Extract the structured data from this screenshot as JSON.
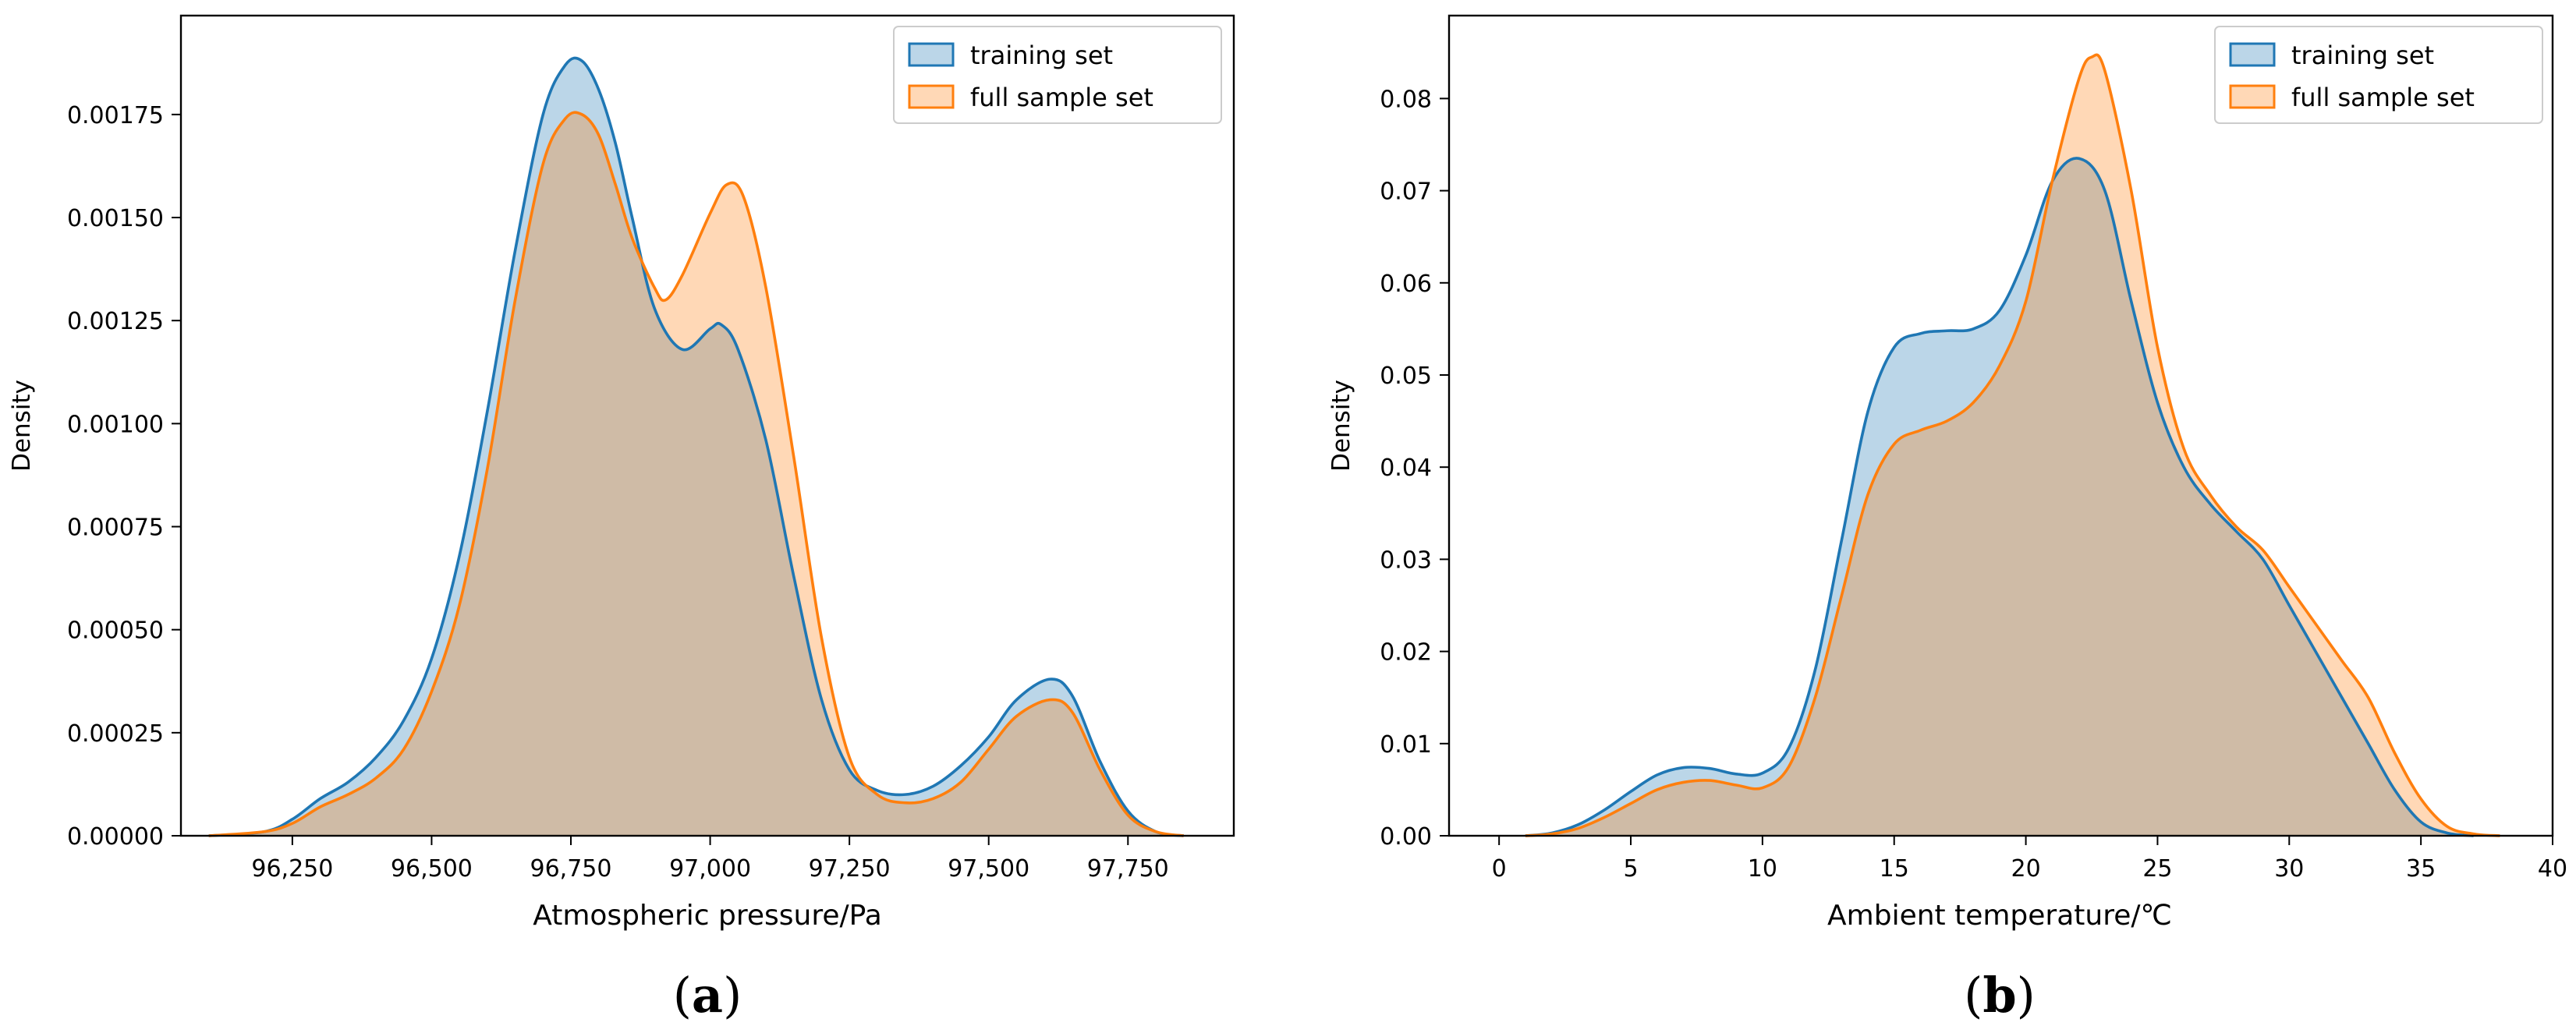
{
  "colors": {
    "training_fill": "#1f77b4",
    "training_line": "#1f77b4",
    "full_fill": "#ff7f0e",
    "full_line": "#ff7f0e"
  },
  "chart_data": [
    {
      "type": "area",
      "panel": "a",
      "panel_open": "(",
      "panel_close": ")",
      "xlabel": "Atmospheric pressure/Pa",
      "ylabel": "Density",
      "xlim": [
        96050,
        97940
      ],
      "ylim": [
        0,
        0.00199
      ],
      "xticks": [
        96250,
        96500,
        96750,
        97000,
        97250,
        97500,
        97750
      ],
      "xtick_labels": [
        "96,250",
        "96,500",
        "96,750",
        "97,000",
        "97,250",
        "97,500",
        "97,750"
      ],
      "yticks": [
        0,
        0.00025,
        0.0005,
        0.00075,
        0.001,
        0.00125,
        0.0015,
        0.00175
      ],
      "ytick_labels": [
        "0.00000",
        "0.00025",
        "0.00050",
        "0.00075",
        "0.00100",
        "0.00125",
        "0.00150",
        "0.00175"
      ],
      "legend": {
        "position": "top-right",
        "entries": [
          "training set",
          "full sample set"
        ]
      },
      "series": [
        {
          "name": "training set",
          "x": [
            96100,
            96200,
            96250,
            96300,
            96350,
            96400,
            96450,
            96500,
            96550,
            96600,
            96650,
            96700,
            96740,
            96770,
            96800,
            96830,
            96860,
            96900,
            96950,
            97000,
            97020,
            97050,
            97100,
            97150,
            97200,
            97250,
            97300,
            97350,
            97400,
            97450,
            97500,
            97550,
            97610,
            97650,
            97700,
            97750,
            97800,
            97850
          ],
          "y": [
            0.0,
            1e-05,
            4e-05,
            9e-05,
            0.00013,
            0.00019,
            0.00028,
            0.00043,
            0.00068,
            0.00103,
            0.00142,
            0.00175,
            0.00187,
            0.00188,
            0.00181,
            0.00168,
            0.0015,
            0.00128,
            0.00118,
            0.00123,
            0.00124,
            0.00118,
            0.00096,
            0.00063,
            0.00033,
            0.00016,
            0.00011,
            0.0001,
            0.00012,
            0.00017,
            0.00024,
            0.00033,
            0.00038,
            0.00034,
            0.00018,
            6e-05,
            1e-05,
            0.0
          ]
        },
        {
          "name": "full sample set",
          "x": [
            96100,
            96200,
            96250,
            96300,
            96350,
            96400,
            96450,
            96500,
            96550,
            96600,
            96650,
            96700,
            96740,
            96770,
            96800,
            96830,
            96860,
            96900,
            96920,
            96950,
            97000,
            97030,
            97060,
            97100,
            97150,
            97200,
            97250,
            97300,
            97350,
            97400,
            97450,
            97500,
            97550,
            97610,
            97650,
            97700,
            97750,
            97800,
            97850
          ],
          "y": [
            0.0,
            1e-05,
            3e-05,
            7e-05,
            0.0001,
            0.00014,
            0.00021,
            0.00035,
            0.00056,
            0.00089,
            0.0013,
            0.00163,
            0.00174,
            0.00175,
            0.0017,
            0.00158,
            0.00145,
            0.00133,
            0.0013,
            0.00136,
            0.00151,
            0.00158,
            0.00155,
            0.00133,
            0.00092,
            0.00048,
            0.00019,
            0.0001,
            8e-05,
            9e-05,
            0.00013,
            0.00021,
            0.00029,
            0.00033,
            0.0003,
            0.00016,
            5e-05,
            1e-05,
            0.0
          ]
        }
      ]
    },
    {
      "type": "area",
      "panel": "b",
      "panel_open": "(",
      "panel_close": ")",
      "xlabel": "Ambient temperature/℃",
      "ylabel": "Density",
      "xlim": [
        -1.9,
        40.0
      ],
      "ylim": [
        0,
        0.089
      ],
      "xticks": [
        0,
        5,
        10,
        15,
        20,
        25,
        30,
        35,
        40
      ],
      "xtick_labels": [
        "0",
        "5",
        "10",
        "15",
        "20",
        "25",
        "30",
        "35",
        "40"
      ],
      "yticks": [
        0,
        0.01,
        0.02,
        0.03,
        0.04,
        0.05,
        0.06,
        0.07,
        0.08
      ],
      "ytick_labels": [
        "0.00",
        "0.01",
        "0.02",
        "0.03",
        "0.04",
        "0.05",
        "0.06",
        "0.07",
        "0.08"
      ],
      "legend": {
        "position": "top-right",
        "entries": [
          "training set",
          "full sample set"
        ]
      },
      "series": [
        {
          "name": "training set",
          "x": [
            1,
            2,
            3,
            4,
            5,
            6,
            7,
            8,
            9,
            10,
            11,
            12,
            13,
            14,
            15,
            16,
            17,
            18,
            19,
            20,
            21,
            22,
            23,
            24,
            25,
            26,
            27,
            28,
            29,
            30,
            31,
            32,
            33,
            34,
            35,
            36,
            37
          ],
          "y": [
            0.0,
            0.0003,
            0.0012,
            0.0028,
            0.0048,
            0.0066,
            0.0074,
            0.0073,
            0.0067,
            0.0068,
            0.0095,
            0.018,
            0.032,
            0.046,
            0.053,
            0.0545,
            0.0548,
            0.055,
            0.057,
            0.063,
            0.071,
            0.0735,
            0.07,
            0.058,
            0.047,
            0.04,
            0.036,
            0.033,
            0.03,
            0.025,
            0.02,
            0.015,
            0.01,
            0.005,
            0.0015,
            0.0003,
            0.0
          ]
        },
        {
          "name": "full sample set",
          "x": [
            1,
            2,
            3,
            4,
            5,
            6,
            7,
            8,
            9,
            10,
            11,
            12,
            13,
            14,
            15,
            16,
            17,
            18,
            19,
            20,
            21,
            22,
            22.5,
            23,
            24,
            25,
            26,
            27,
            28,
            29,
            30,
            31,
            32,
            33,
            34,
            35,
            36,
            37,
            38
          ],
          "y": [
            0.0,
            0.0002,
            0.0008,
            0.002,
            0.0035,
            0.005,
            0.0058,
            0.006,
            0.0055,
            0.0052,
            0.0075,
            0.015,
            0.026,
            0.037,
            0.0425,
            0.044,
            0.045,
            0.047,
            0.051,
            0.058,
            0.071,
            0.082,
            0.0845,
            0.083,
            0.07,
            0.053,
            0.042,
            0.037,
            0.0335,
            0.031,
            0.027,
            0.023,
            0.019,
            0.015,
            0.009,
            0.004,
            0.001,
            0.0002,
            0.0
          ]
        }
      ]
    }
  ]
}
